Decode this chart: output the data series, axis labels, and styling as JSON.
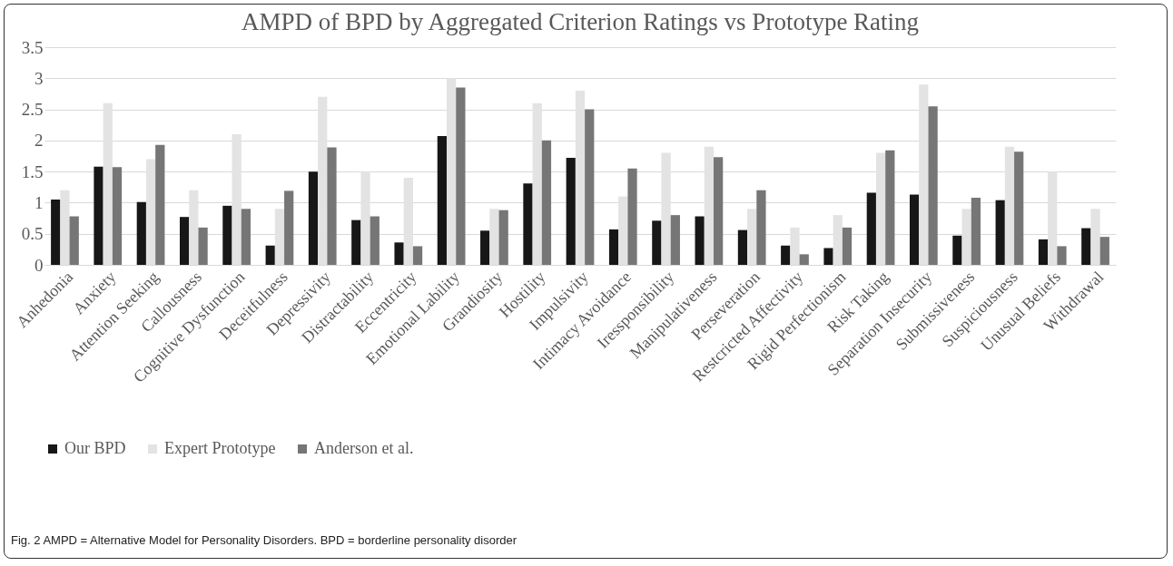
{
  "chart_data": {
    "type": "bar",
    "title": "AMPD of BPD by Aggregated Criterion Ratings vs Prototype Rating",
    "categories": [
      "Anhedonia",
      "Anxiety",
      "Attention Seeking",
      "Callousness",
      "Cognitive Dysfunction",
      "Deceitfulness",
      "Depressivity",
      "Distractability",
      "Eccentricity",
      "Emotional Lability",
      "Grandiosity",
      "Hostility",
      "Impulsivity",
      "Intimacy Avoidance",
      "Iressponsibility",
      "Manipulativeness",
      "Perseveration",
      "Restcricted Affectivity",
      "Rigid Perfectionism",
      "Risk Taking",
      "Separation Insecurity",
      "Submissiveness",
      "Suspiciousness",
      "Unusual Beliefs",
      "Withdrawal"
    ],
    "series": [
      {
        "name": "Our BPD",
        "color": "#171717",
        "values": [
          1.05,
          1.58,
          1.01,
          0.77,
          0.95,
          0.31,
          1.5,
          0.72,
          0.36,
          2.07,
          0.55,
          1.31,
          1.72,
          0.57,
          0.71,
          0.78,
          0.56,
          0.31,
          0.27,
          1.16,
          1.13,
          0.47,
          1.04,
          0.41,
          0.59
        ]
      },
      {
        "name": "Expert Prototype",
        "color": "#e3e3e3",
        "values": [
          1.2,
          2.6,
          1.7,
          1.2,
          2.1,
          0.9,
          2.7,
          1.5,
          1.4,
          3.0,
          0.9,
          2.6,
          2.8,
          1.1,
          1.8,
          1.9,
          0.9,
          0.6,
          0.8,
          1.8,
          2.9,
          0.9,
          1.9,
          1.5,
          0.9
        ]
      },
      {
        "name": "Anderson et al.",
        "color": "#767676",
        "values": [
          0.78,
          1.57,
          1.93,
          0.6,
          0.9,
          1.19,
          1.89,
          0.78,
          0.3,
          2.85,
          0.88,
          2.0,
          2.5,
          1.55,
          0.8,
          1.73,
          1.2,
          0.17,
          0.6,
          1.84,
          2.55,
          1.08,
          1.82,
          0.3,
          0.45
        ]
      }
    ],
    "ylim": [
      0,
      3.5
    ],
    "yticks": [
      0,
      0.5,
      1,
      1.5,
      2,
      2.5,
      3,
      3.5
    ],
    "grid": "y",
    "legend": "bottom",
    "annotations": [
      "Fig. 2 AMPD = Alternative Model for Personality Disorders. BPD = borderline personality disorder"
    ]
  }
}
